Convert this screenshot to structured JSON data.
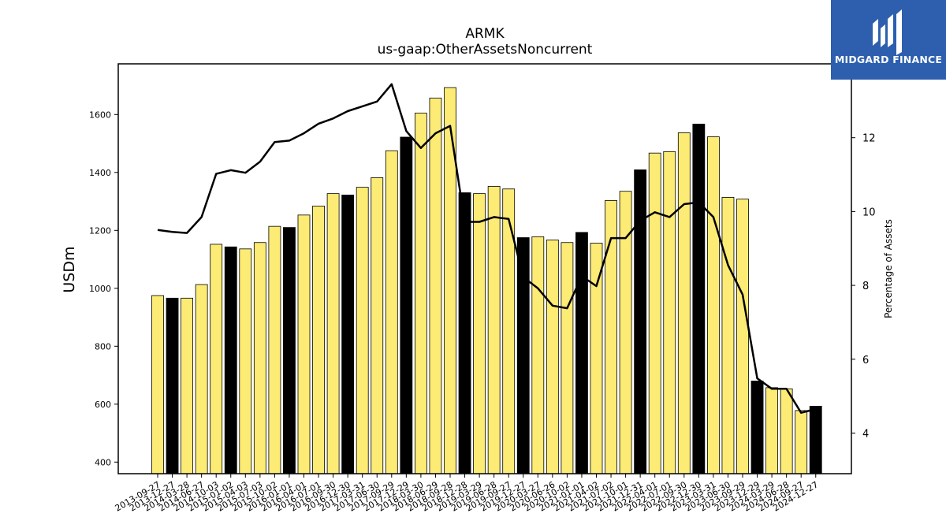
{
  "chart_data": {
    "type": "bar+line",
    "title": "ARMK",
    "subtitle": "us-gaap:OtherAssetsNoncurrent",
    "ylabel": "USDm",
    "y2label": "Percentage of Assets",
    "ylim": [
      360,
      1775
    ],
    "y2lim": [
      2.9,
      14.0
    ],
    "yticks": [
      400,
      600,
      800,
      1000,
      1200,
      1400,
      1600
    ],
    "y2ticks": [
      4,
      6,
      8,
      10,
      12
    ],
    "categories": [
      "2013-09-27",
      "2013-12-27",
      "2014-03-28",
      "2014-06-27",
      "2014-10-03",
      "2015-01-02",
      "2015-04-03",
      "2015-07-03",
      "2015-10-02",
      "2016-01-01",
      "2016-04-01",
      "2016-07-01",
      "2016-09-30",
      "2016-12-30",
      "2017-03-31",
      "2017-06-30",
      "2017-09-29",
      "2017-12-29",
      "2018-03-30",
      "2018-06-29",
      "2018-09-28",
      "2018-12-28",
      "2019-03-29",
      "2019-06-28",
      "2019-09-27",
      "2019-12-27",
      "2020-03-27",
      "2020-06-26",
      "2020-10-02",
      "2021-01-01",
      "2021-04-02",
      "2021-07-02",
      "2021-10-01",
      "2021-12-31",
      "2022-04-01",
      "2022-07-01",
      "2022-09-30",
      "2022-12-30",
      "2023-03-31",
      "2023-06-30",
      "2023-09-29",
      "2023-12-29",
      "2024-03-29",
      "2024-06-28",
      "2024-09-27",
      "2024-12-27"
    ],
    "series": [
      {
        "name": "OtherAssetsNoncurrent",
        "type": "bar",
        "values": [
          975,
          966,
          966,
          1013,
          1152,
          1143,
          1136,
          1158,
          1214,
          1210,
          1253,
          1284,
          1327,
          1322,
          1349,
          1382,
          1475,
          1522,
          1605,
          1657,
          1693,
          1330,
          1327,
          1352,
          1343,
          1175,
          1178,
          1167,
          1158,
          1193,
          1156,
          1303,
          1335,
          1409,
          1467,
          1472,
          1537,
          1567,
          1523,
          1314,
          1308,
          680,
          657,
          653,
          578,
          593
        ]
      },
      {
        "name": "Percentage of Assets",
        "type": "line",
        "axis": "right",
        "values": [
          9.5,
          9.45,
          9.42,
          9.85,
          11.02,
          11.12,
          11.05,
          11.35,
          11.88,
          11.92,
          12.12,
          12.38,
          12.52,
          12.72,
          12.85,
          12.98,
          13.45,
          12.18,
          11.72,
          12.12,
          12.32,
          9.72,
          9.72,
          9.85,
          9.8,
          8.22,
          7.92,
          7.45,
          7.38,
          8.25,
          7.98,
          9.28,
          9.28,
          9.75,
          9.98,
          9.85,
          10.2,
          10.25,
          9.85,
          8.55,
          7.75,
          5.48,
          5.2,
          5.2,
          4.55,
          4.65
        ]
      }
    ],
    "colors": {
      "bar": "#fceb74",
      "bar_highlight": "#000000",
      "line": "#000000"
    },
    "highlighted_indices": [
      1,
      5,
      9,
      13,
      17,
      21,
      25,
      29,
      33,
      37,
      41,
      45
    ],
    "grid": false
  },
  "branding": {
    "logo_text": "MIDGARD FINANCE"
  }
}
